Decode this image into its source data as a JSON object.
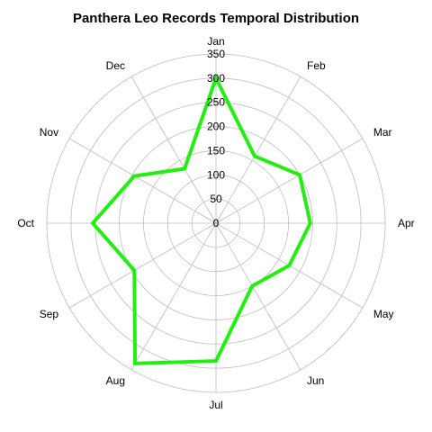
{
  "chart_data": {
    "type": "radar",
    "title": "Panthera Leo Records Temporal Distribution",
    "categories": [
      "Jan",
      "Feb",
      "Mar",
      "Apr",
      "May",
      "Jun",
      "Jul",
      "Aug",
      "Sep",
      "Oct",
      "Nov",
      "Dec"
    ],
    "series": [
      {
        "values": [
          300,
          160,
          200,
          195,
          175,
          150,
          285,
          335,
          195,
          255,
          195,
          130
        ],
        "color": "#22ee11"
      }
    ],
    "rticks": [
      0,
      50,
      100,
      150,
      200,
      250,
      300,
      350
    ],
    "rlim": [
      0,
      350
    ],
    "grid": true,
    "legend": "none",
    "start_angle": "top",
    "direction": "clockwise"
  }
}
